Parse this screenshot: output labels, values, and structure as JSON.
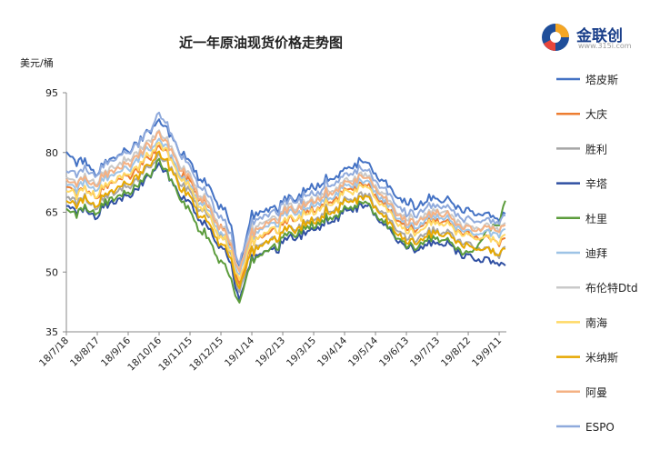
{
  "brand": {
    "name": "金联创",
    "url": "www.315i.com"
  },
  "chart_data": {
    "type": "line",
    "title": "近一年原油现货价格走势图",
    "ylabel": "美元/桶",
    "xlabel": "",
    "ylim": [
      35,
      95
    ],
    "yticks": [
      35,
      50,
      65,
      80,
      95
    ],
    "xlim": [
      "2018-07-18",
      "2019-09-18"
    ],
    "xticks": [
      "18/7/18",
      "18/8/17",
      "18/9/16",
      "18/10/16",
      "18/11/15",
      "18/12/15",
      "19/1/14",
      "19/2/13",
      "19/3/15",
      "19/4/14",
      "19/5/14",
      "19/6/13",
      "19/7/13",
      "19/8/12",
      "19/9/11"
    ],
    "grid": false,
    "legend_position": "right",
    "series": [
      {
        "name": "塔皮斯",
        "color": "#4472c4",
        "x": [
          "2018-07-18",
          "2018-08-17",
          "2018-09-16",
          "2018-10-06",
          "2018-10-16",
          "2018-11-15",
          "2018-12-15",
          "2018-12-26",
          "2019-01-01",
          "2019-01-14",
          "2019-02-13",
          "2019-03-15",
          "2019-04-14",
          "2019-04-28",
          "2019-05-14",
          "2019-06-13",
          "2019-07-13",
          "2019-08-12",
          "2019-09-11",
          "2019-09-18"
        ],
        "values": [
          79.5,
          76.0,
          80.5,
          85.0,
          88.0,
          77.0,
          67.0,
          60.0,
          51.0,
          64.5,
          67.0,
          71.5,
          75.5,
          78.0,
          75.0,
          66.5,
          68.5,
          65.0,
          64.0,
          64.5
        ]
      },
      {
        "name": "大庆",
        "color": "#ed7d31",
        "x": [
          "2018-07-18",
          "2018-08-17",
          "2018-09-16",
          "2018-10-06",
          "2018-10-16",
          "2018-11-15",
          "2018-12-15",
          "2018-12-26",
          "2019-01-01",
          "2019-01-14",
          "2019-02-13",
          "2019-03-15",
          "2019-04-14",
          "2019-04-28",
          "2019-05-14",
          "2019-06-13",
          "2019-07-13",
          "2019-08-12",
          "2019-09-11",
          "2019-09-18"
        ],
        "values": [
          71.0,
          70.0,
          74.0,
          78.5,
          82.0,
          72.0,
          62.0,
          55.0,
          46.5,
          58.0,
          61.5,
          66.0,
          70.0,
          72.0,
          69.5,
          60.5,
          63.0,
          59.0,
          58.0,
          57.5
        ]
      },
      {
        "name": "胜利",
        "color": "#a5a5a5",
        "x": [
          "2018-07-18",
          "2018-08-17",
          "2018-09-16",
          "2018-10-06",
          "2018-10-16",
          "2018-11-15",
          "2018-12-15",
          "2018-12-26",
          "2019-01-01",
          "2019-01-14",
          "2019-02-13",
          "2019-03-15",
          "2019-04-14",
          "2019-04-28",
          "2019-05-14",
          "2019-06-13",
          "2019-07-13",
          "2019-08-12",
          "2019-09-11",
          "2019-09-18"
        ],
        "values": [
          68.5,
          67.5,
          71.5,
          76.0,
          79.5,
          69.5,
          59.5,
          53.0,
          44.5,
          56.0,
          59.5,
          63.5,
          67.5,
          69.5,
          67.0,
          58.0,
          60.5,
          56.5,
          55.0,
          55.5
        ]
      },
      {
        "name": "辛塔",
        "color": "#2f4fa2",
        "x": [
          "2018-07-18",
          "2018-08-17",
          "2018-09-16",
          "2018-10-06",
          "2018-10-16",
          "2018-11-15",
          "2018-12-15",
          "2018-12-26",
          "2019-01-01",
          "2019-01-14",
          "2019-02-13",
          "2019-03-15",
          "2019-04-14",
          "2019-04-28",
          "2019-05-14",
          "2019-06-13",
          "2019-07-13",
          "2019-08-12",
          "2019-09-11",
          "2019-09-18"
        ],
        "values": [
          66.0,
          65.0,
          69.0,
          73.5,
          77.0,
          66.5,
          56.5,
          50.5,
          43.0,
          53.5,
          57.0,
          61.0,
          65.0,
          67.0,
          64.5,
          55.5,
          57.5,
          53.5,
          52.5,
          51.0
        ]
      },
      {
        "name": "杜里",
        "color": "#5c9c3c",
        "x": [
          "2018-07-18",
          "2018-08-17",
          "2018-09-16",
          "2018-10-06",
          "2018-10-16",
          "2018-11-15",
          "2018-12-15",
          "2018-12-26",
          "2019-01-01",
          "2019-01-14",
          "2019-02-13",
          "2019-03-15",
          "2019-04-14",
          "2019-04-28",
          "2019-05-14",
          "2019-06-13",
          "2019-07-13",
          "2019-08-12",
          "2019-09-11",
          "2019-09-18"
        ],
        "values": [
          65.0,
          66.0,
          70.0,
          74.0,
          78.0,
          64.5,
          53.0,
          47.0,
          42.0,
          53.0,
          58.0,
          62.0,
          65.5,
          67.5,
          65.0,
          56.0,
          58.5,
          54.0,
          63.0,
          68.0
        ]
      },
      {
        "name": "迪拜",
        "color": "#9dc3e6",
        "x": [
          "2018-07-18",
          "2018-08-17",
          "2018-09-16",
          "2018-10-06",
          "2018-10-16",
          "2018-11-15",
          "2018-12-15",
          "2018-12-26",
          "2019-01-01",
          "2019-01-14",
          "2019-02-13",
          "2019-03-15",
          "2019-04-14",
          "2019-04-28",
          "2019-05-14",
          "2019-06-13",
          "2019-07-13",
          "2019-08-12",
          "2019-09-11",
          "2019-09-18"
        ],
        "values": [
          71.5,
          72.0,
          76.0,
          80.5,
          83.5,
          71.0,
          60.5,
          54.5,
          49.0,
          59.5,
          63.5,
          67.0,
          71.0,
          73.0,
          70.5,
          61.0,
          64.0,
          59.5,
          60.0,
          60.5
        ]
      },
      {
        "name": "布伦特Dtd",
        "color": "#c9c9c9",
        "x": [
          "2018-07-18",
          "2018-08-17",
          "2018-09-16",
          "2018-10-06",
          "2018-10-16",
          "2018-11-15",
          "2018-12-15",
          "2018-12-26",
          "2019-01-01",
          "2019-01-14",
          "2019-02-13",
          "2019-03-15",
          "2019-04-14",
          "2019-04-28",
          "2019-05-14",
          "2019-06-13",
          "2019-07-13",
          "2019-08-12",
          "2019-09-11",
          "2019-09-18"
        ],
        "values": [
          73.0,
          73.5,
          78.0,
          82.5,
          85.5,
          73.5,
          62.0,
          56.0,
          50.5,
          61.0,
          65.0,
          68.5,
          72.5,
          74.5,
          72.0,
          62.5,
          65.5,
          61.0,
          61.5,
          62.0
        ]
      },
      {
        "name": "南海",
        "color": "#ffd966",
        "x": [
          "2018-07-18",
          "2018-08-17",
          "2018-09-16",
          "2018-10-06",
          "2018-10-16",
          "2018-11-15",
          "2018-12-15",
          "2018-12-26",
          "2019-01-01",
          "2019-01-14",
          "2019-02-13",
          "2019-03-15",
          "2019-04-14",
          "2019-04-28",
          "2019-05-14",
          "2019-06-13",
          "2019-07-13",
          "2019-08-12",
          "2019-09-11",
          "2019-09-18"
        ],
        "values": [
          70.0,
          70.5,
          74.5,
          79.0,
          82.5,
          70.5,
          59.5,
          53.5,
          48.0,
          58.0,
          62.0,
          65.5,
          69.5,
          71.5,
          69.0,
          59.5,
          62.5,
          58.5,
          58.5,
          59.0
        ]
      },
      {
        "name": "米纳斯",
        "color": "#e6a800",
        "x": [
          "2018-07-18",
          "2018-08-17",
          "2018-09-16",
          "2018-10-06",
          "2018-10-16",
          "2018-11-15",
          "2018-12-15",
          "2018-12-26",
          "2019-01-01",
          "2019-01-14",
          "2019-02-13",
          "2019-03-15",
          "2019-04-14",
          "2019-04-28",
          "2019-05-14",
          "2019-06-13",
          "2019-07-13",
          "2019-08-12",
          "2019-09-11",
          "2019-09-18"
        ],
        "values": [
          67.5,
          68.0,
          72.0,
          76.5,
          80.0,
          68.0,
          57.5,
          51.5,
          46.0,
          55.5,
          59.5,
          63.0,
          67.0,
          69.0,
          66.5,
          57.0,
          60.0,
          56.0,
          55.0,
          55.5
        ]
      },
      {
        "name": "阿曼",
        "color": "#f4b183",
        "x": [
          "2018-07-18",
          "2018-08-17",
          "2018-09-16",
          "2018-10-06",
          "2018-10-16",
          "2018-11-15",
          "2018-12-15",
          "2018-12-26",
          "2019-01-01",
          "2019-01-14",
          "2019-02-13",
          "2019-03-15",
          "2019-04-14",
          "2019-04-28",
          "2019-05-14",
          "2019-06-13",
          "2019-07-13",
          "2019-08-12",
          "2019-09-11",
          "2019-09-18"
        ],
        "values": [
          72.5,
          73.0,
          77.0,
          81.5,
          85.0,
          72.5,
          61.5,
          55.5,
          50.0,
          60.0,
          64.5,
          68.0,
          72.0,
          74.0,
          71.5,
          62.0,
          65.0,
          60.5,
          61.0,
          61.5
        ]
      },
      {
        "name": "ESPO",
        "color": "#8faadc",
        "x": [
          "2018-07-18",
          "2018-08-17",
          "2018-09-16",
          "2018-10-06",
          "2018-10-16",
          "2018-11-15",
          "2018-12-15",
          "2018-12-26",
          "2019-01-01",
          "2019-01-14",
          "2019-02-13",
          "2019-03-15",
          "2019-04-14",
          "2019-04-28",
          "2019-05-14",
          "2019-06-13",
          "2019-07-13",
          "2019-08-12",
          "2019-09-11",
          "2019-09-18"
        ],
        "values": [
          75.0,
          75.5,
          80.0,
          85.0,
          90.0,
          75.5,
          64.0,
          58.0,
          52.0,
          62.5,
          66.5,
          70.0,
          74.0,
          76.0,
          73.5,
          64.0,
          67.0,
          62.5,
          63.0,
          63.5
        ]
      }
    ]
  }
}
